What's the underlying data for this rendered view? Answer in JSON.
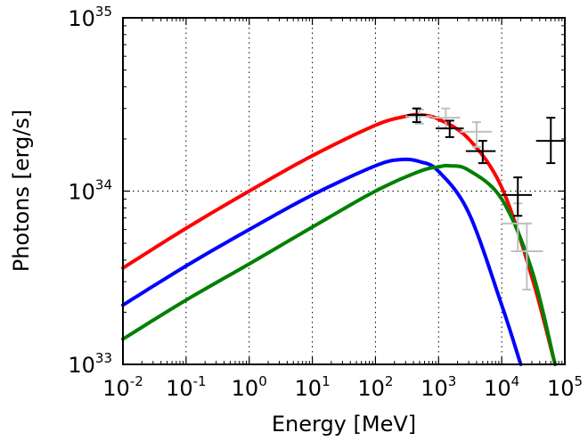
{
  "chart_data": {
    "type": "line",
    "xscale": "log",
    "yscale": "log",
    "xlim": [
      0.01,
      100000
    ],
    "ylim": [
      1e+33,
      1e+35
    ],
    "xlabel": "Energy [MeV]",
    "ylabel": "Photons [erg/s]",
    "grid": true,
    "x_tick_labels": [
      {
        "base": "10",
        "exp": "-2"
      },
      {
        "base": "10",
        "exp": "-1"
      },
      {
        "base": "10",
        "exp": "0"
      },
      {
        "base": "10",
        "exp": "1"
      },
      {
        "base": "10",
        "exp": "2"
      },
      {
        "base": "10",
        "exp": "3"
      },
      {
        "base": "10",
        "exp": "4"
      },
      {
        "base": "10",
        "exp": "5"
      }
    ],
    "y_tick_labels": [
      {
        "base": "10",
        "exp": "33"
      },
      {
        "base": "10",
        "exp": "34"
      },
      {
        "base": "10",
        "exp": "35"
      }
    ],
    "series": [
      {
        "color": "#ff0000",
        "x": [
          0.01,
          0.1,
          1,
          10,
          100,
          300,
          500,
          1000,
          3000,
          10000,
          30000,
          70000
        ],
        "y": [
          3.6e+33,
          6.1e+33,
          1e+34,
          1.6e+34,
          2.4e+34,
          2.7e+34,
          2.75e+34,
          2.6e+34,
          2e+34,
          1.05e+34,
          3.2e+33,
          1e+33
        ]
      },
      {
        "color": "#0000ff",
        "x": [
          0.01,
          0.1,
          1,
          10,
          100,
          250,
          500,
          1000,
          3000,
          10000,
          20000
        ],
        "y": [
          2.2e+33,
          3.7e+33,
          6e+33,
          9.5e+33,
          1.4e+34,
          1.52e+34,
          1.48e+34,
          1.3e+34,
          7.5e+33,
          2.2e+33,
          1e+33
        ]
      },
      {
        "color": "#008000",
        "x": [
          0.01,
          0.1,
          1,
          10,
          100,
          500,
          1000,
          1500,
          3000,
          10000,
          30000,
          70000
        ],
        "y": [
          1.4e+33,
          2.35e+33,
          3.8e+33,
          6.2e+33,
          1e+34,
          1.3e+34,
          1.38e+34,
          1.4e+34,
          1.32e+34,
          9e+33,
          3.5e+33,
          1e+33
        ]
      }
    ],
    "data_points": [
      {
        "set": "black",
        "x": 450,
        "xlo": 320,
        "xhi": 640,
        "y": 2.75e+34,
        "ylo": 2.5e+34,
        "yhi": 3e+34
      },
      {
        "set": "black",
        "x": 1500,
        "xlo": 900,
        "xhi": 2500,
        "y": 2.3e+34,
        "ylo": 2.05e+34,
        "yhi": 2.55e+34
      },
      {
        "set": "black",
        "x": 5000,
        "xlo": 2700,
        "xhi": 8000,
        "y": 1.7e+34,
        "ylo": 1.45e+34,
        "yhi": 1.95e+34
      },
      {
        "set": "black",
        "x": 18000,
        "xlo": 10000,
        "xhi": 30000,
        "y": 9.5e+33,
        "ylo": 7.2e+33,
        "yhi": 1.2e+34
      },
      {
        "set": "black",
        "x": 60000,
        "xlo": 35000,
        "xhi": 100000,
        "y": 1.95e+34,
        "ylo": 1.45e+34,
        "yhi": 2.65e+34
      },
      {
        "set": "gray",
        "x": 500,
        "xlo": 300,
        "xhi": 800,
        "y": 2.7e+34,
        "ylo": 2.45e+34,
        "yhi": 2.95e+34
      },
      {
        "set": "gray",
        "x": 1300,
        "xlo": 800,
        "xhi": 2200,
        "y": 2.65e+34,
        "ylo": 2.3e+34,
        "yhi": 3e+34
      },
      {
        "set": "gray",
        "x": 4000,
        "xlo": 2200,
        "xhi": 7000,
        "y": 2.2e+34,
        "ylo": 1.8e+34,
        "yhi": 2.5e+34
      },
      {
        "set": "gray",
        "x": 18000,
        "xlo": 10000,
        "xhi": 30000,
        "y": 6.5e+33,
        "ylo": 4.5e+33,
        "yhi": 8.5e+33
      },
      {
        "set": "gray",
        "x": 25000,
        "xlo": 14000,
        "xhi": 45000,
        "y": 4.5e+33,
        "ylo": 2.7e+33,
        "yhi": 6.5e+33
      }
    ],
    "colors": {
      "black_points": "#000000",
      "gray_points": "#c0c0c0"
    }
  }
}
